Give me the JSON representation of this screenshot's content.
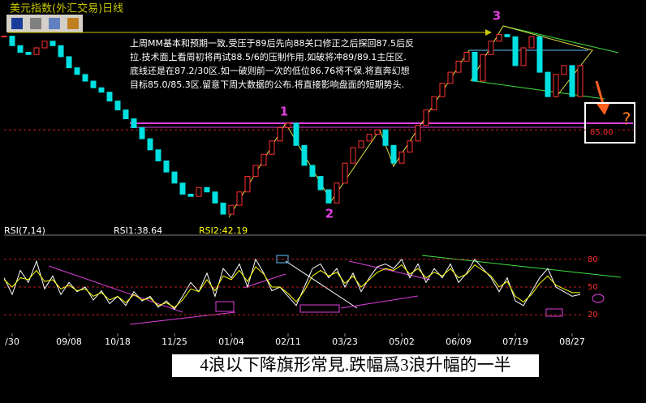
{
  "chart_data": [
    {
      "type": "candlestick",
      "title": "美元指数(外汇交易)日线",
      "values": [
        89.23,
        88.8,
        88.5,
        88.4,
        88.7,
        89.0,
        88.8,
        88.3,
        87.8,
        87.5,
        87.2,
        86.9,
        86.7,
        86.3,
        85.9,
        85.5,
        85.1,
        84.6,
        84.1,
        83.6,
        83.1,
        82.6,
        82.1,
        82.0,
        82.4,
        82.2,
        81.7,
        81.2,
        81.6,
        82.2,
        82.9,
        83.4,
        83.9,
        84.5,
        85.1,
        85.3,
        84.3,
        83.4,
        82.9,
        82.3,
        81.7,
        82.6,
        83.5,
        84.2,
        84.5,
        84.8,
        85.0,
        84.3,
        83.5,
        84.0,
        84.5,
        85.2,
        85.9,
        86.5,
        87.1,
        87.6,
        88.1,
        88.5,
        87.2,
        88.4,
        89.0,
        89.3,
        89.2,
        87.9,
        88.7,
        89.2,
        87.6,
        86.5,
        87.5,
        87.9,
        86.5,
        87.9
      ],
      "up_color": "#ff3030",
      "down_color": "#00e0e0",
      "ylim": [
        80.8,
        90.2
      ],
      "yticks": [
        {
          "value": 85,
          "label": "85.00"
        }
      ],
      "grid": true,
      "annotations": [
        "上周MM基本和预期一致,受压于89后先向88关口修正之后探回87.5后反",
        "拉.技术面上看周初将再试88.5/6的压制作用.如破将冲89/89.1主压区.",
        "底线还是在87.2/30区.如一破则前一次的低位86.76将不保.将直奔幻想",
        "目标85.0/85.3区.留意下周大数据的公布.将直接影响盘面的短期势头."
      ],
      "wave_labels": [
        "1",
        "2",
        "3"
      ],
      "question": "?"
    },
    {
      "type": "line",
      "title": "RSI(7,14)",
      "categories": [
        null,
        "/30",
        null,
        null,
        null,
        null,
        null,
        null,
        "09/08",
        null,
        null,
        null,
        null,
        null,
        "10/18",
        null,
        null,
        null,
        null,
        null,
        null,
        "11/25",
        null,
        null,
        null,
        null,
        null,
        null,
        "01/04",
        null,
        null,
        null,
        null,
        null,
        null,
        "02/11",
        null,
        null,
        null,
        null,
        null,
        null,
        "03/23",
        null,
        null,
        null,
        null,
        null,
        null,
        "05/02",
        null,
        null,
        null,
        null,
        null,
        null,
        "06/09",
        null,
        null,
        null,
        null,
        null,
        null,
        "07/19",
        null,
        null,
        null,
        null,
        null,
        null,
        "08/27",
        null
      ],
      "series": [
        {
          "name": "RSI1:38.64",
          "color": "#ffffff",
          "values": [
            60,
            42,
            68,
            55,
            78,
            48,
            62,
            42,
            55,
            45,
            50,
            36,
            46,
            32,
            40,
            30,
            45,
            35,
            40,
            28,
            35,
            26,
            40,
            55,
            45,
            65,
            40,
            70,
            60,
            75,
            50,
            80,
            65,
            46,
            50,
            40,
            30,
            50,
            70,
            75,
            60,
            70,
            50,
            65,
            45,
            60,
            72,
            75,
            70,
            80,
            60,
            75,
            55,
            70,
            60,
            75,
            55,
            65,
            80,
            70,
            60,
            45,
            60,
            35,
            30,
            45,
            60,
            70,
            50,
            45,
            40,
            42
          ]
        },
        {
          "name": "RSI2:42.19",
          "color": "#ffff00",
          "values": [
            58,
            50,
            60,
            58,
            68,
            56,
            58,
            48,
            52,
            46,
            48,
            40,
            44,
            36,
            40,
            33,
            42,
            36,
            38,
            30,
            33,
            28,
            36,
            48,
            45,
            58,
            46,
            62,
            58,
            68,
            56,
            72,
            64,
            50,
            50,
            43,
            34,
            46,
            62,
            68,
            62,
            66,
            54,
            62,
            50,
            58,
            66,
            70,
            68,
            74,
            64,
            70,
            60,
            66,
            62,
            70,
            60,
            64,
            74,
            68,
            62,
            50,
            56,
            40,
            34,
            42,
            54,
            62,
            52,
            48,
            44,
            44
          ]
        }
      ],
      "ylim": [
        0,
        100
      ],
      "yticks": [
        20,
        50,
        80
      ],
      "grid": true
    }
  ],
  "caption": "4浪以下降旗形常見.跌幅爲3浪升幅的一半"
}
